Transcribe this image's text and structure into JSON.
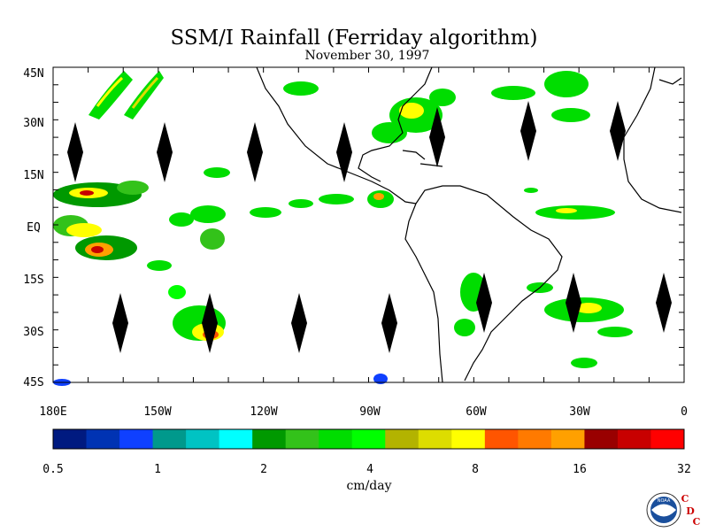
{
  "title": "SSM/I Rainfall (Ferriday algorithm)",
  "subtitle": "November 30, 1997",
  "map": {
    "lat_labels": [
      "45N",
      "30N",
      "15N",
      "EQ",
      "15S",
      "30S",
      "45S"
    ],
    "lon_labels": [
      "180E",
      "150W",
      "120W",
      "90W",
      "60W",
      "30W",
      "0"
    ]
  },
  "colorbar": {
    "unit_label": "cm/day",
    "tick_labels": [
      "0.5",
      "1",
      "2",
      "4",
      "8",
      "16",
      "32"
    ],
    "colors": [
      "#001a80",
      "#0033b3",
      "#0f40ff",
      "#00998c",
      "#00c3c3",
      "#00ffff",
      "#009900",
      "#33c21a",
      "#00dd00",
      "#00ff00",
      "#b3b300",
      "#dddd00",
      "#ffff00",
      "#ff5500",
      "#ff7a00",
      "#ffa000",
      "#990000",
      "#c80000",
      "#ff0000"
    ]
  },
  "logo": {
    "text": "NOAA",
    "letters": [
      "C",
      "D",
      "C"
    ]
  },
  "icons": {
    "noaa_logo": "noaa-seal-icon",
    "diamond": "orbit-gap-diamond-icon"
  }
}
